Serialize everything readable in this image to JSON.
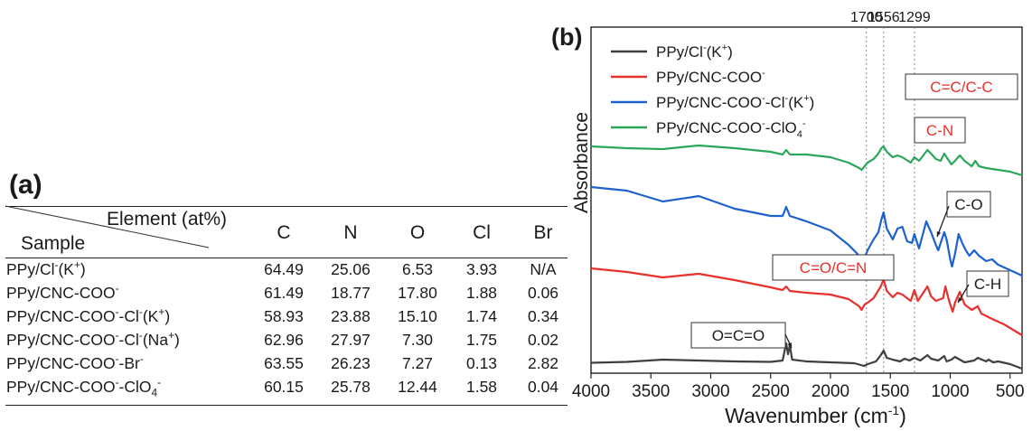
{
  "table": {
    "panel_label": "(a)",
    "header_element": "Element (at%)",
    "header_sample": "Sample",
    "columns": [
      "C",
      "N",
      "O",
      "Cl",
      "Br"
    ],
    "rows": [
      {
        "sample": "PPy/Cl",
        "sup1": "-",
        "tail": "(K",
        "sup2": "+",
        "end": ")",
        "values": [
          "64.49",
          "25.06",
          "6.53",
          "3.93",
          "N/A"
        ]
      },
      {
        "sample": "PPy/CNC-COO",
        "sup1": "-",
        "tail": "",
        "sup2": "",
        "end": "",
        "values": [
          "61.49",
          "18.77",
          "17.80",
          "1.88",
          "0.06"
        ]
      },
      {
        "sample": "PPy/CNC-COO",
        "sup1": "-",
        "tail": "-Cl",
        "sup2": "-",
        "end": "(K",
        "sup3": "+",
        "end2": ")",
        "values": [
          "58.93",
          "23.88",
          "15.10",
          "1.74",
          "0.34"
        ]
      },
      {
        "sample": "PPy/CNC-COO",
        "sup1": "-",
        "tail": "-Cl",
        "sup2": "-",
        "end": "(Na",
        "sup3": "+",
        "end2": ")",
        "values": [
          "62.96",
          "27.97",
          "7.30",
          "1.75",
          "0.02"
        ]
      },
      {
        "sample": "PPy/CNC-COO",
        "sup1": "-",
        "tail": "-Br",
        "sup2": "-",
        "end": "",
        "values": [
          "63.55",
          "26.23",
          "7.27",
          "0.13",
          "2.82"
        ]
      },
      {
        "sample": "PPy/CNC-COO",
        "sup1": "-",
        "tail": "-ClO",
        "sub": "4",
        "sup2": "-",
        "end": "",
        "values": [
          "60.15",
          "25.78",
          "12.44",
          "1.58",
          "0.04"
        ]
      }
    ]
  },
  "chart_data": {
    "type": "line",
    "panel_label": "(b)",
    "xlabel": "Wavenumber (cm",
    "xlabel_sup": "-1",
    "xlabel_end": ")",
    "ylabel": "Absorbance",
    "xlim": [
      4000,
      400
    ],
    "x_reversed": true,
    "xticks": [
      4000,
      3500,
      3000,
      2500,
      2000,
      1500,
      1000,
      500
    ],
    "reference_lines": [
      1700,
      1556,
      1299
    ],
    "reference_labels": [
      "1700",
      "1556",
      "1299"
    ],
    "legend_position": "top-left",
    "series": [
      {
        "name": "PPy/Cl",
        "name_sup": "-",
        "name_tail": "(K",
        "name_sup2": "+",
        "name_end": ")",
        "color": "#3f3f3f",
        "offset": 0,
        "points": [
          [
            4000,
            0.5
          ],
          [
            3700,
            1.5
          ],
          [
            3400,
            4
          ],
          [
            3100,
            3
          ],
          [
            2800,
            2
          ],
          [
            2500,
            1.5
          ],
          [
            2400,
            3
          ],
          [
            2370,
            22
          ],
          [
            2355,
            10
          ],
          [
            2340,
            20
          ],
          [
            2320,
            4
          ],
          [
            2200,
            2
          ],
          [
            2000,
            1
          ],
          [
            1800,
            0
          ],
          [
            1720,
            -3
          ],
          [
            1690,
            -1
          ],
          [
            1620,
            2
          ],
          [
            1580,
            9
          ],
          [
            1556,
            14
          ],
          [
            1530,
            6
          ],
          [
            1480,
            4
          ],
          [
            1420,
            2
          ],
          [
            1380,
            5
          ],
          [
            1340,
            3
          ],
          [
            1300,
            6
          ],
          [
            1250,
            3
          ],
          [
            1190,
            9
          ],
          [
            1160,
            5
          ],
          [
            1100,
            3
          ],
          [
            1050,
            8
          ],
          [
            1030,
            2
          ],
          [
            990,
            4
          ],
          [
            960,
            7
          ],
          [
            920,
            4
          ],
          [
            880,
            1
          ],
          [
            800,
            3
          ],
          [
            770,
            6
          ],
          [
            700,
            2
          ],
          [
            680,
            4
          ],
          [
            640,
            1
          ],
          [
            600,
            2
          ],
          [
            500,
            -1
          ],
          [
            400,
            -6
          ]
        ]
      },
      {
        "name": "PPy/CNC-COO",
        "name_sup": "-",
        "name_tail": "",
        "name_sup2": "",
        "name_end": "",
        "color": "#e8302c",
        "offset": 75,
        "points": [
          [
            4000,
            30
          ],
          [
            3700,
            26
          ],
          [
            3400,
            20
          ],
          [
            3100,
            24
          ],
          [
            2800,
            17
          ],
          [
            2500,
            9
          ],
          [
            2400,
            6
          ],
          [
            2370,
            10
          ],
          [
            2340,
            5
          ],
          [
            2200,
            3
          ],
          [
            2000,
            1
          ],
          [
            1850,
            -4
          ],
          [
            1760,
            -12
          ],
          [
            1740,
            -16
          ],
          [
            1715,
            -10
          ],
          [
            1690,
            -8
          ],
          [
            1640,
            -3
          ],
          [
            1580,
            10
          ],
          [
            1556,
            18
          ],
          [
            1530,
            5
          ],
          [
            1480,
            -2
          ],
          [
            1440,
            3
          ],
          [
            1400,
            1
          ],
          [
            1330,
            -6
          ],
          [
            1300,
            6
          ],
          [
            1270,
            -6
          ],
          [
            1190,
            10
          ],
          [
            1160,
            -1
          ],
          [
            1120,
            -6
          ],
          [
            1060,
            -3
          ],
          [
            1040,
            10
          ],
          [
            1010,
            -6
          ],
          [
            980,
            -18
          ],
          [
            960,
            -8
          ],
          [
            920,
            4
          ],
          [
            880,
            -10
          ],
          [
            820,
            -16
          ],
          [
            770,
            -12
          ],
          [
            740,
            -20
          ],
          [
            650,
            -26
          ],
          [
            550,
            -32
          ],
          [
            400,
            -44
          ]
        ]
      },
      {
        "name": "PPy/CNC-COO",
        "name_sup": "-",
        "name_tail": "-Cl",
        "name_sup2": "-",
        "name_end": "(K",
        "name_sup3": "+",
        "name_end2": ")",
        "color": "#1d61cf",
        "offset": 185,
        "points": [
          [
            4000,
            10
          ],
          [
            3700,
            6
          ],
          [
            3400,
            -6
          ],
          [
            3100,
            0
          ],
          [
            2800,
            -14
          ],
          [
            2500,
            -22
          ],
          [
            2400,
            -22
          ],
          [
            2370,
            -12
          ],
          [
            2340,
            -22
          ],
          [
            2200,
            -28
          ],
          [
            2000,
            -38
          ],
          [
            1850,
            -54
          ],
          [
            1760,
            -66
          ],
          [
            1740,
            -72
          ],
          [
            1715,
            -68
          ],
          [
            1690,
            -60
          ],
          [
            1640,
            -48
          ],
          [
            1600,
            -40
          ],
          [
            1575,
            -26
          ],
          [
            1556,
            -18
          ],
          [
            1530,
            -36
          ],
          [
            1480,
            -48
          ],
          [
            1440,
            -36
          ],
          [
            1400,
            -34
          ],
          [
            1360,
            -50
          ],
          [
            1320,
            -52
          ],
          [
            1300,
            -42
          ],
          [
            1260,
            -58
          ],
          [
            1200,
            -28
          ],
          [
            1160,
            -40
          ],
          [
            1120,
            -54
          ],
          [
            1100,
            -60
          ],
          [
            1080,
            -52
          ],
          [
            1050,
            -40
          ],
          [
            1030,
            -48
          ],
          [
            1000,
            -70
          ],
          [
            985,
            -78
          ],
          [
            960,
            -64
          ],
          [
            930,
            -42
          ],
          [
            900,
            -52
          ],
          [
            870,
            -60
          ],
          [
            840,
            -66
          ],
          [
            800,
            -60
          ],
          [
            760,
            -66
          ],
          [
            700,
            -72
          ],
          [
            650,
            -70
          ],
          [
            600,
            -76
          ],
          [
            500,
            -82
          ],
          [
            400,
            -88
          ]
        ]
      },
      {
        "name": "PPy/CNC-COO",
        "name_sup": "-",
        "name_tail": "-ClO",
        "name_sub": "4",
        "name_sup2": "-",
        "name_end": "",
        "color": "#2ba65b",
        "offset": 240,
        "points": [
          [
            4000,
            0
          ],
          [
            3700,
            -2
          ],
          [
            3400,
            -3
          ],
          [
            3100,
            1
          ],
          [
            2800,
            -2
          ],
          [
            2500,
            -6
          ],
          [
            2400,
            -9
          ],
          [
            2370,
            -4
          ],
          [
            2340,
            -9
          ],
          [
            2200,
            -9
          ],
          [
            2000,
            -12
          ],
          [
            1850,
            -18
          ],
          [
            1760,
            -24
          ],
          [
            1740,
            -26
          ],
          [
            1715,
            -22
          ],
          [
            1690,
            -18
          ],
          [
            1640,
            -14
          ],
          [
            1600,
            -8
          ],
          [
            1575,
            -2
          ],
          [
            1556,
            0
          ],
          [
            1530,
            -6
          ],
          [
            1480,
            -12
          ],
          [
            1440,
            -10
          ],
          [
            1400,
            -12
          ],
          [
            1330,
            -18
          ],
          [
            1300,
            -12
          ],
          [
            1260,
            -16
          ],
          [
            1190,
            -4
          ],
          [
            1160,
            -8
          ],
          [
            1120,
            -14
          ],
          [
            1080,
            -16
          ],
          [
            1050,
            -8
          ],
          [
            1030,
            -12
          ],
          [
            990,
            -20
          ],
          [
            960,
            -16
          ],
          [
            920,
            -10
          ],
          [
            880,
            -16
          ],
          [
            820,
            -22
          ],
          [
            790,
            -16
          ],
          [
            760,
            -22
          ],
          [
            700,
            -24
          ],
          [
            600,
            -26
          ],
          [
            500,
            -28
          ],
          [
            400,
            -32
          ]
        ]
      }
    ],
    "annotations": [
      {
        "text": "C=C/C-C",
        "boxed": true,
        "color": "#e8302c",
        "anchor_x": 1250,
        "note_offset": 320
      },
      {
        "text": "C-N",
        "boxed": true,
        "color": "#e8302c",
        "anchor_x": 1120,
        "note_offset": 290
      },
      {
        "text": "C-O",
        "boxed": true,
        "color": "#1a1a1a",
        "anchor_x": 900
      },
      {
        "text": "C=O/C=N",
        "boxed": true,
        "color": "#e8302c",
        "anchor_x": 1900
      },
      {
        "text": "C-H",
        "boxed": true,
        "color": "#1a1a1a",
        "anchor_x": 900
      },
      {
        "text": "O=C=O",
        "boxed": true,
        "color": "#1a1a1a",
        "anchor_x": 2700
      }
    ]
  }
}
